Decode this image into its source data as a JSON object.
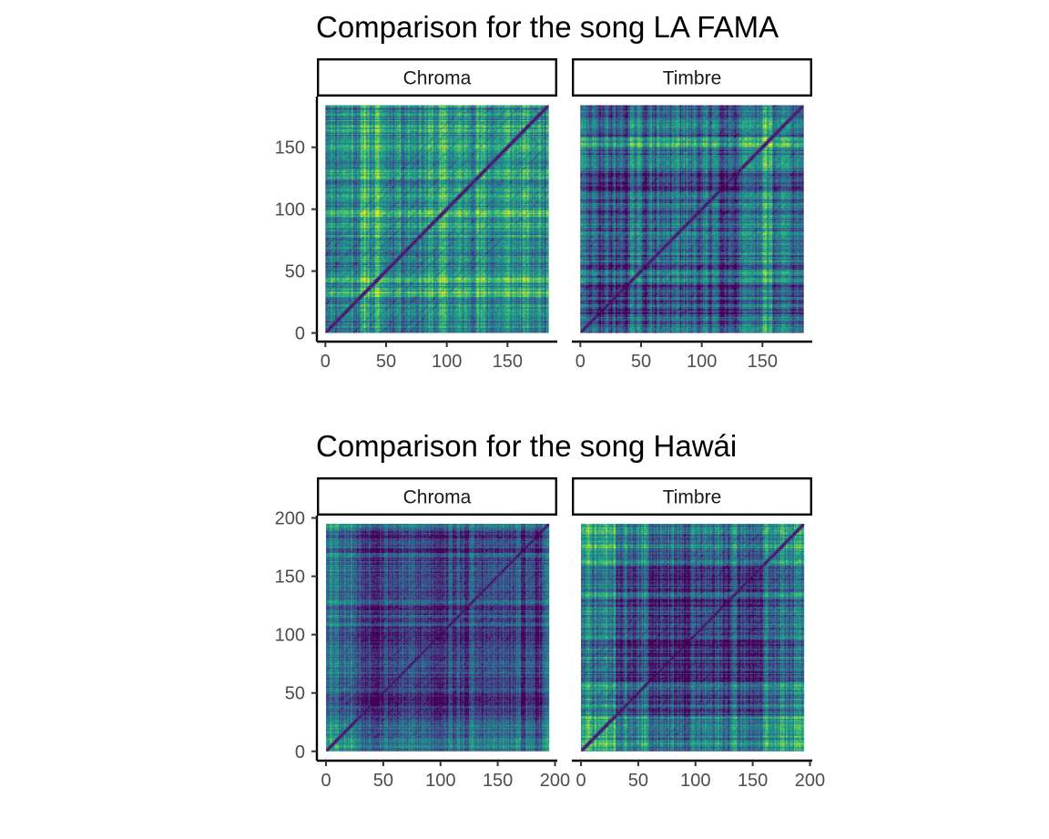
{
  "chart_data": [
    {
      "type": "heatmap",
      "title": "Comparison for the song LA FAMA",
      "facets": [
        "Chroma",
        "Timbre"
      ],
      "n_segments": 184,
      "xlim": [
        -7,
        191
      ],
      "ylim": [
        -7,
        191
      ],
      "x_ticks": [
        0,
        50,
        100,
        150
      ],
      "y_ticks": [
        0,
        50,
        100,
        150
      ],
      "xlabel": "",
      "ylabel": "",
      "colormap": "viridis",
      "diagonal": "self-similarity (distance 0)"
    },
    {
      "type": "heatmap",
      "title": "Comparison for the song Hawái",
      "facets": [
        "Chroma",
        "Timbre"
      ],
      "n_segments": 195,
      "xlim": [
        -8,
        202
      ],
      "ylim": [
        -8,
        202
      ],
      "x_ticks": [
        0,
        50,
        100,
        150,
        200
      ],
      "y_ticks": [
        0,
        50,
        100,
        150,
        200
      ],
      "xlabel": "",
      "ylabel": "",
      "colormap": "viridis",
      "diagonal": "self-similarity (distance 0)"
    }
  ],
  "colors": {
    "viridis": [
      "#440154",
      "#482878",
      "#3e4989",
      "#31688e",
      "#26828e",
      "#1f9e89",
      "#35b779",
      "#6ece58",
      "#b5de2b",
      "#fde725"
    ],
    "axis": "#000000",
    "tick_text": "#4d4d4d"
  }
}
